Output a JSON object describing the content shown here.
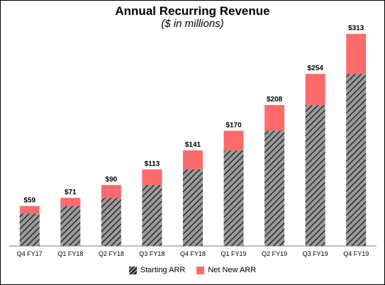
{
  "chart_data": {
    "type": "bar",
    "stacked": true,
    "title": "Annual Recurring Revenue",
    "subtitle": "($ in millions)",
    "categories": [
      "Q4 FY17",
      "Q1 FY18",
      "Q2 FY18",
      "Q3 FY18",
      "Q4 FY18",
      "Q1 FY19",
      "Q2 FY19",
      "Q3 FY19",
      "Q4 FY19"
    ],
    "series": [
      {
        "name": "Starting ARR",
        "values": [
          48,
          59,
          71,
          90,
          113,
          141,
          170,
          208,
          254
        ],
        "color": "#7f7f7f",
        "pattern": "diagonal-hatch"
      },
      {
        "name": "Net New ARR",
        "values": [
          11,
          12,
          19,
          23,
          28,
          29,
          38,
          46,
          59
        ],
        "color": "#ff6b6b"
      }
    ],
    "totals": [
      "$59",
      "$71",
      "$90",
      "$113",
      "$141",
      "$170",
      "$208",
      "$254",
      "$313"
    ],
    "ylim": [
      0,
      320
    ],
    "grid": false,
    "legend_position": "bottom"
  }
}
